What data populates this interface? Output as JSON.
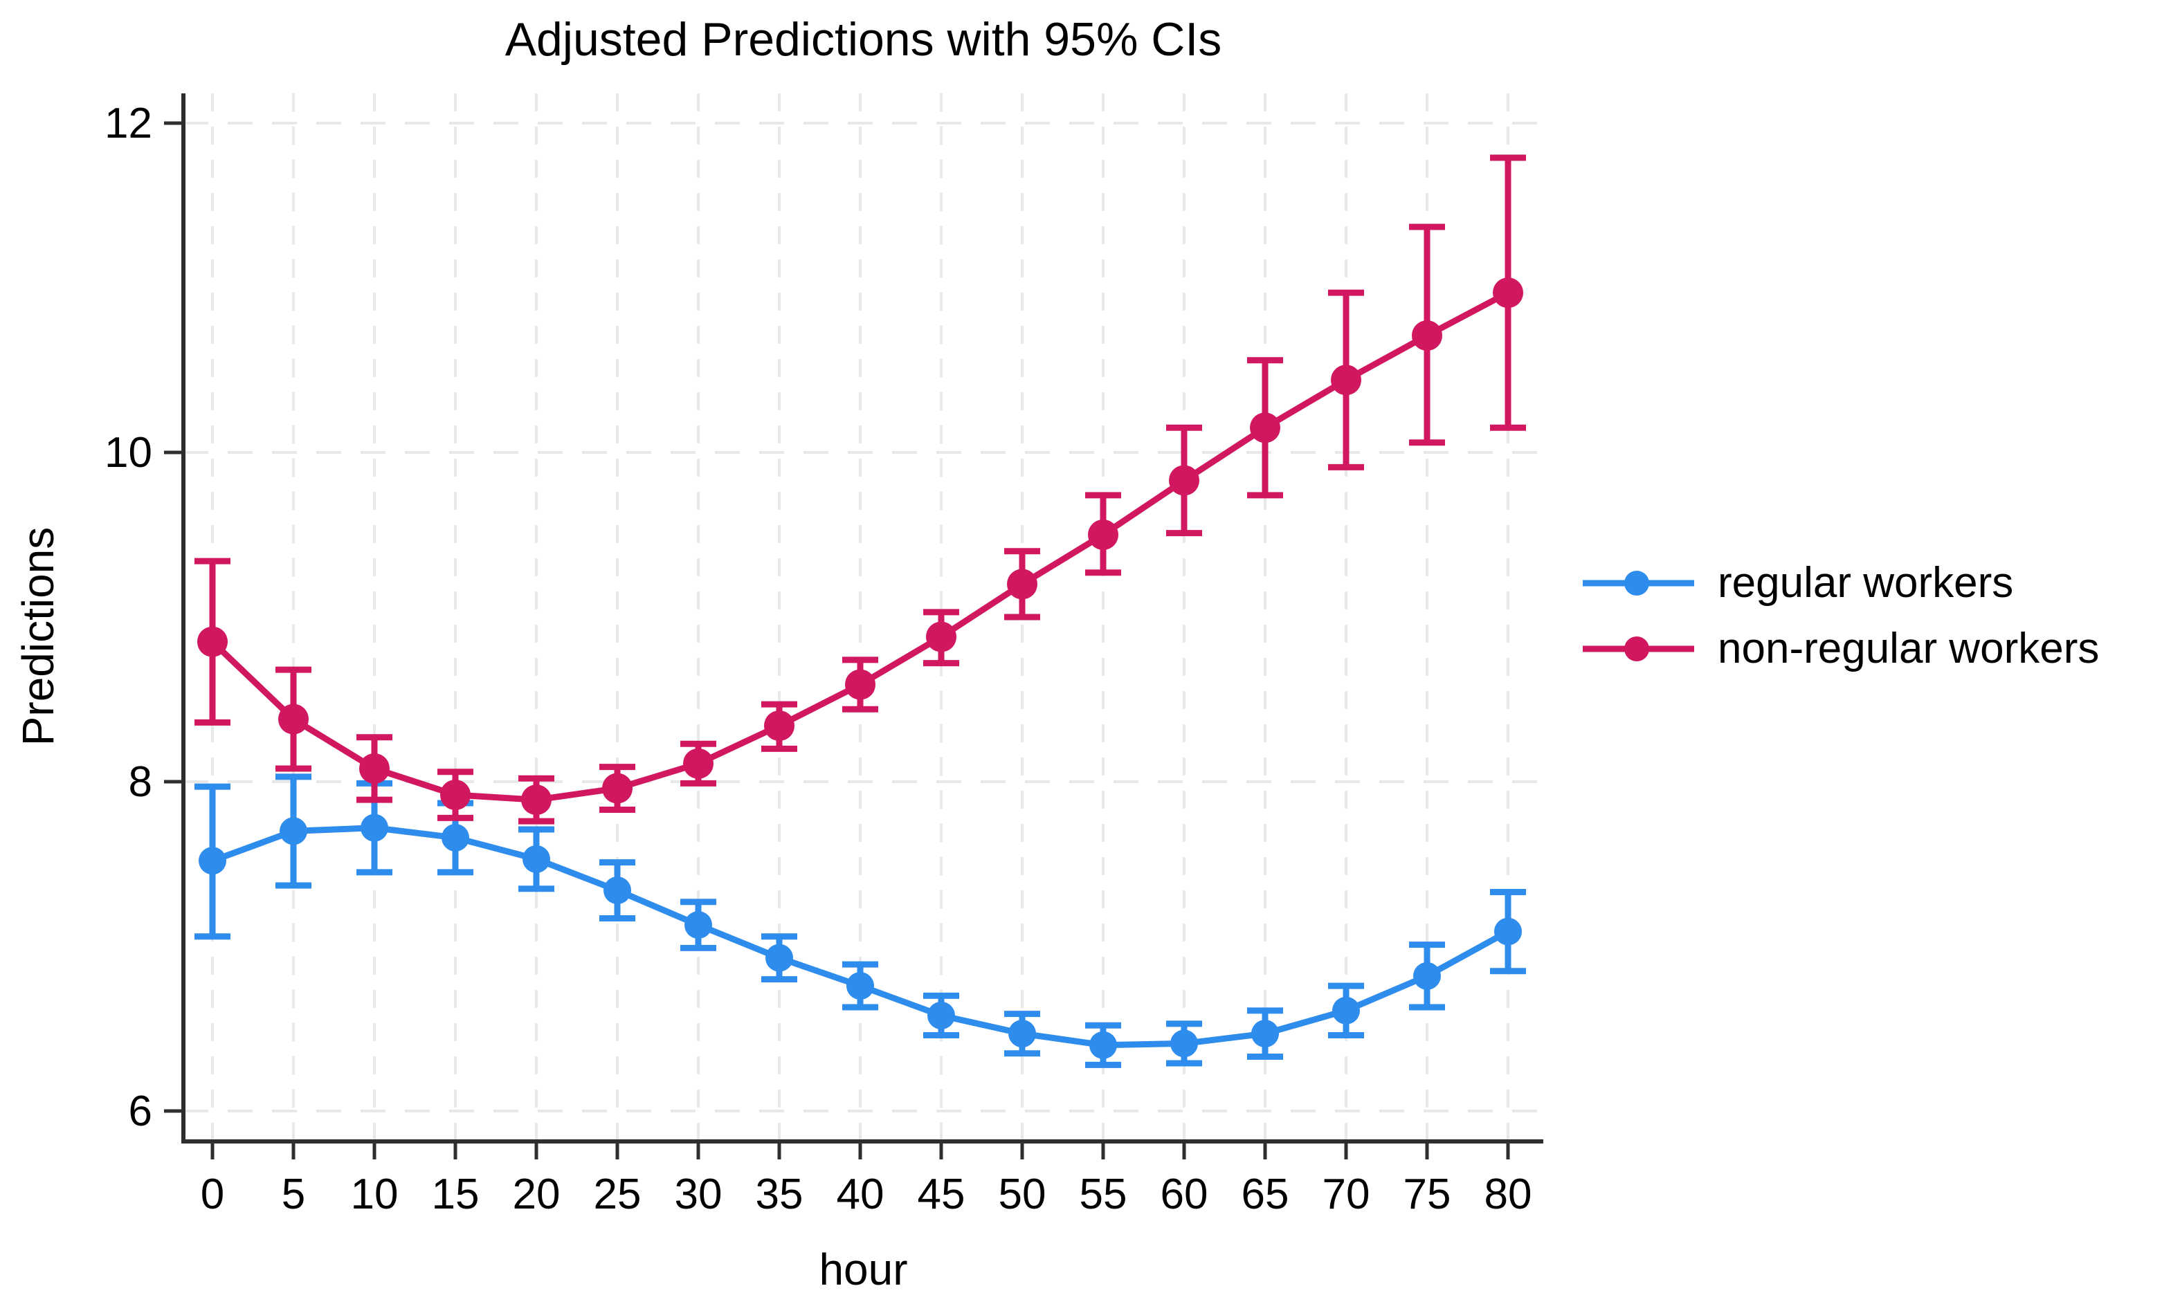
{
  "chart_data": {
    "type": "line",
    "title": "Adjusted Predictions with 95% CIs",
    "xlabel": "hour",
    "ylabel": "Predictions",
    "x": [
      0,
      5,
      10,
      15,
      20,
      25,
      30,
      35,
      40,
      45,
      50,
      55,
      60,
      65,
      70,
      75,
      80
    ],
    "xticks": [
      0,
      5,
      10,
      15,
      20,
      25,
      30,
      35,
      40,
      45,
      50,
      55,
      60,
      65,
      70,
      75,
      80
    ],
    "yticks": [
      6,
      8,
      10,
      12
    ],
    "xlim": [
      -1.8,
      80.5
    ],
    "ylim": [
      5.81,
      12.18
    ],
    "grid": "both-dashed",
    "legend_position": "right-middle",
    "error_bars": "95% confidence intervals with caps",
    "colors": {
      "regular": "#2E8CEC",
      "non_regular": "#D1175F",
      "gridline": "#E8E8E8",
      "axis": "#2E2E2E",
      "text": "#000000",
      "background": "#FFFFFF"
    },
    "series": [
      {
        "name": "regular workers",
        "color": "#2E8CEC",
        "values": [
          7.52,
          7.7,
          7.72,
          7.66,
          7.53,
          7.34,
          7.13,
          6.93,
          6.76,
          6.58,
          6.47,
          6.4,
          6.41,
          6.47,
          6.61,
          6.82,
          7.09
        ],
        "ci_low": [
          7.06,
          7.37,
          7.45,
          7.45,
          7.35,
          7.17,
          6.99,
          6.8,
          6.63,
          6.46,
          6.35,
          6.28,
          6.29,
          6.33,
          6.46,
          6.63,
          6.85
        ],
        "ci_high": [
          7.97,
          8.03,
          7.99,
          7.87,
          7.71,
          7.51,
          7.27,
          7.06,
          6.89,
          6.7,
          6.59,
          6.52,
          6.53,
          6.61,
          6.76,
          7.01,
          7.33
        ]
      },
      {
        "name": "non-regular workers",
        "color": "#D1175F",
        "values": [
          8.85,
          8.38,
          8.08,
          7.92,
          7.89,
          7.96,
          8.11,
          8.34,
          8.59,
          8.88,
          9.2,
          9.5,
          9.83,
          10.15,
          10.44,
          10.71,
          10.97
        ],
        "ci_low": [
          8.36,
          8.08,
          7.89,
          7.78,
          7.76,
          7.83,
          7.99,
          8.2,
          8.44,
          8.72,
          9.0,
          9.27,
          9.51,
          9.74,
          9.91,
          10.06,
          10.15
        ],
        "ci_high": [
          9.34,
          8.68,
          8.27,
          8.06,
          8.02,
          8.09,
          8.23,
          8.47,
          8.74,
          9.03,
          9.4,
          9.74,
          10.15,
          10.56,
          10.97,
          11.37,
          11.79
        ]
      }
    ]
  }
}
